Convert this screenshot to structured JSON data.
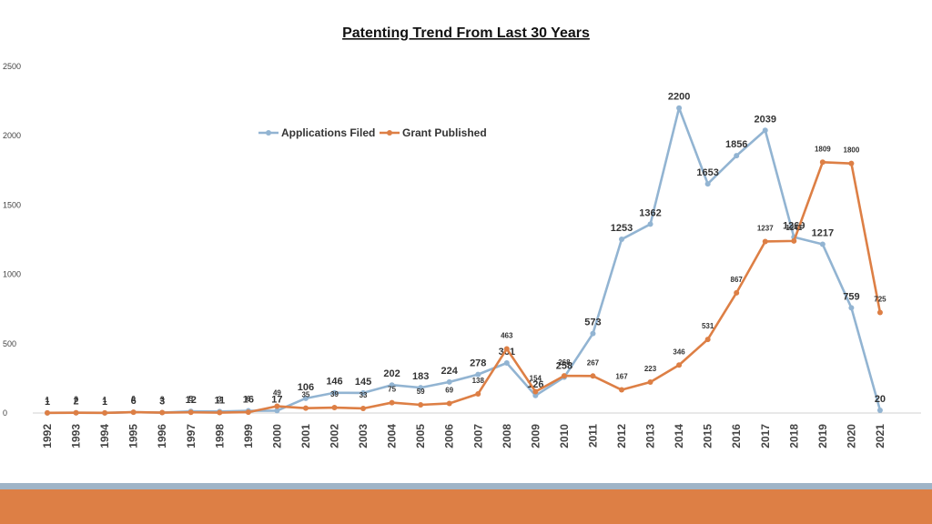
{
  "chart_data": {
    "type": "line",
    "title": "Patenting Trend From Last 30 Years",
    "xlabel": "",
    "ylabel": "",
    "ylim": [
      0,
      2500
    ],
    "yticks": [
      0,
      500,
      1000,
      1500,
      2000,
      2500
    ],
    "legend_position": "top-center",
    "grid": false,
    "categories": [
      "1992",
      "1993",
      "1994",
      "1995",
      "1996",
      "1997",
      "1998",
      "1999",
      "2000",
      "2001",
      "2002",
      "2003",
      "2004",
      "2005",
      "2006",
      "2007",
      "2008",
      "2009",
      "2010",
      "2011",
      "2012",
      "2013",
      "2014",
      "2015",
      "2016",
      "2017",
      "2018",
      "2019",
      "2020",
      "2021"
    ],
    "series": [
      {
        "name": "Applications Filed",
        "color": "#92b4d2",
        "values": [
          1,
          2,
          1,
          6,
          3,
          12,
          11,
          16,
          17,
          106,
          146,
          145,
          202,
          183,
          224,
          278,
          361,
          126,
          258,
          573,
          1253,
          1362,
          2200,
          1653,
          1856,
          2039,
          1269,
          1217,
          759,
          20
        ]
      },
      {
        "name": "Grant Published",
        "color": "#dd7f45",
        "values": [
          1,
          2,
          1,
          6,
          3,
          5,
          3,
          6,
          49,
          35,
          39,
          33,
          75,
          59,
          69,
          138,
          463,
          154,
          268,
          267,
          167,
          223,
          346,
          531,
          867,
          1237,
          1241,
          1809,
          1800,
          725
        ]
      }
    ]
  },
  "footer": {
    "stripe_blue": "#9fb4c7",
    "stripe_orange": "#dd7f45"
  }
}
